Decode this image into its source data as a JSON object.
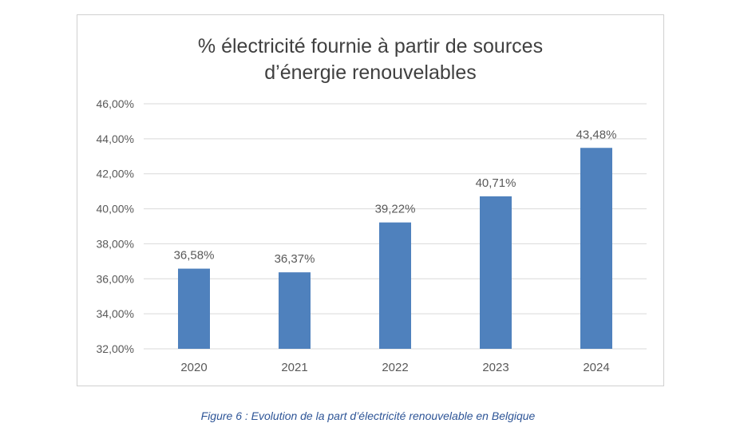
{
  "caption": "Figure 6 : Evolution de la part d’électricité renouvelable en Belgique",
  "chart_data": {
    "type": "bar",
    "title_lines": [
      "% électricité fournie à partir de sources",
      "d’énergie renouvelables"
    ],
    "categories": [
      "2020",
      "2021",
      "2022",
      "2023",
      "2024"
    ],
    "values": [
      36.58,
      36.37,
      39.22,
      40.71,
      43.48
    ],
    "value_labels": [
      "36,58%",
      "36,37%",
      "39,22%",
      "40,71%",
      "43,48%"
    ],
    "ylim": [
      32,
      46
    ],
    "yticks": [
      32,
      34,
      36,
      38,
      40,
      42,
      44,
      46
    ],
    "ytick_labels": [
      "32,00%",
      "34,00%",
      "36,00%",
      "38,00%",
      "40,00%",
      "42,00%",
      "44,00%",
      "46,00%"
    ],
    "grid": true,
    "legend": "none",
    "bar_color": "#4f81bd",
    "grid_color": "#d9d9d9",
    "text_color": "#595959",
    "title_color": "#404040"
  }
}
